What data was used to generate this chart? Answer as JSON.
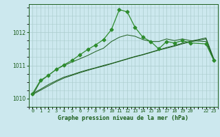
{
  "title": "Graphe pression niveau de la mer (hPa)",
  "bg_color": "#cce8ee",
  "grid_color": "#aacccc",
  "line_color_dark": "#1a5c1a",
  "line_color_mid": "#2d8c2d",
  "xlim": [
    -0.5,
    23.5
  ],
  "ylim": [
    1009.75,
    1012.85
  ],
  "yticks": [
    1010,
    1011,
    1012
  ],
  "xtick_labels": [
    "0",
    "1",
    "2",
    "3",
    "4",
    "5",
    "6",
    "7",
    "8",
    "9",
    "10",
    "11",
    "12",
    "13",
    "14",
    "15",
    "16",
    "17",
    "18",
    "19",
    "20",
    "",
    "22",
    "23"
  ],
  "smooth1_x": [
    0,
    1,
    2,
    3,
    4,
    5,
    6,
    7,
    8,
    9,
    10,
    11,
    12,
    13,
    14,
    15,
    16,
    17,
    18,
    19,
    20,
    22,
    23
  ],
  "smooth1_y": [
    1010.15,
    1010.28,
    1010.42,
    1010.54,
    1010.65,
    1010.72,
    1010.8,
    1010.87,
    1010.93,
    1011.0,
    1011.06,
    1011.13,
    1011.2,
    1011.27,
    1011.33,
    1011.4,
    1011.47,
    1011.54,
    1011.6,
    1011.67,
    1011.73,
    1011.83,
    1011.2
  ],
  "smooth2_x": [
    0,
    1,
    2,
    3,
    4,
    5,
    6,
    7,
    8,
    9,
    10,
    11,
    12,
    13,
    14,
    15,
    16,
    17,
    18,
    19,
    20,
    22,
    23
  ],
  "smooth2_y": [
    1010.12,
    1010.25,
    1010.38,
    1010.51,
    1010.62,
    1010.7,
    1010.78,
    1010.85,
    1010.92,
    1010.98,
    1011.05,
    1011.12,
    1011.19,
    1011.26,
    1011.32,
    1011.39,
    1011.46,
    1011.52,
    1011.58,
    1011.65,
    1011.71,
    1011.8,
    1011.15
  ],
  "smooth3_x": [
    0,
    1,
    2,
    3,
    4,
    5,
    6,
    7,
    8,
    9,
    10,
    11,
    12,
    13,
    14,
    15,
    16,
    17,
    18,
    19,
    20,
    22,
    23
  ],
  "smooth3_y": [
    1010.1,
    1010.52,
    1010.7,
    1010.88,
    1011.0,
    1011.1,
    1011.2,
    1011.3,
    1011.42,
    1011.52,
    1011.72,
    1011.85,
    1011.92,
    1011.88,
    1011.78,
    1011.72,
    1011.72,
    1011.8,
    1011.75,
    1011.8,
    1011.75,
    1011.72,
    1011.15
  ],
  "main_x": [
    0,
    1,
    2,
    3,
    4,
    5,
    6,
    7,
    8,
    9,
    10,
    11,
    12,
    13,
    14,
    15,
    16,
    17,
    18,
    19,
    20,
    22,
    23
  ],
  "main_y": [
    1010.15,
    1010.55,
    1010.7,
    1010.88,
    1011.02,
    1011.15,
    1011.32,
    1011.48,
    1011.62,
    1011.78,
    1012.08,
    1012.68,
    1012.62,
    1012.15,
    1011.85,
    1011.72,
    1011.5,
    1011.72,
    1011.68,
    1011.75,
    1011.68,
    1011.65,
    1011.15
  ]
}
